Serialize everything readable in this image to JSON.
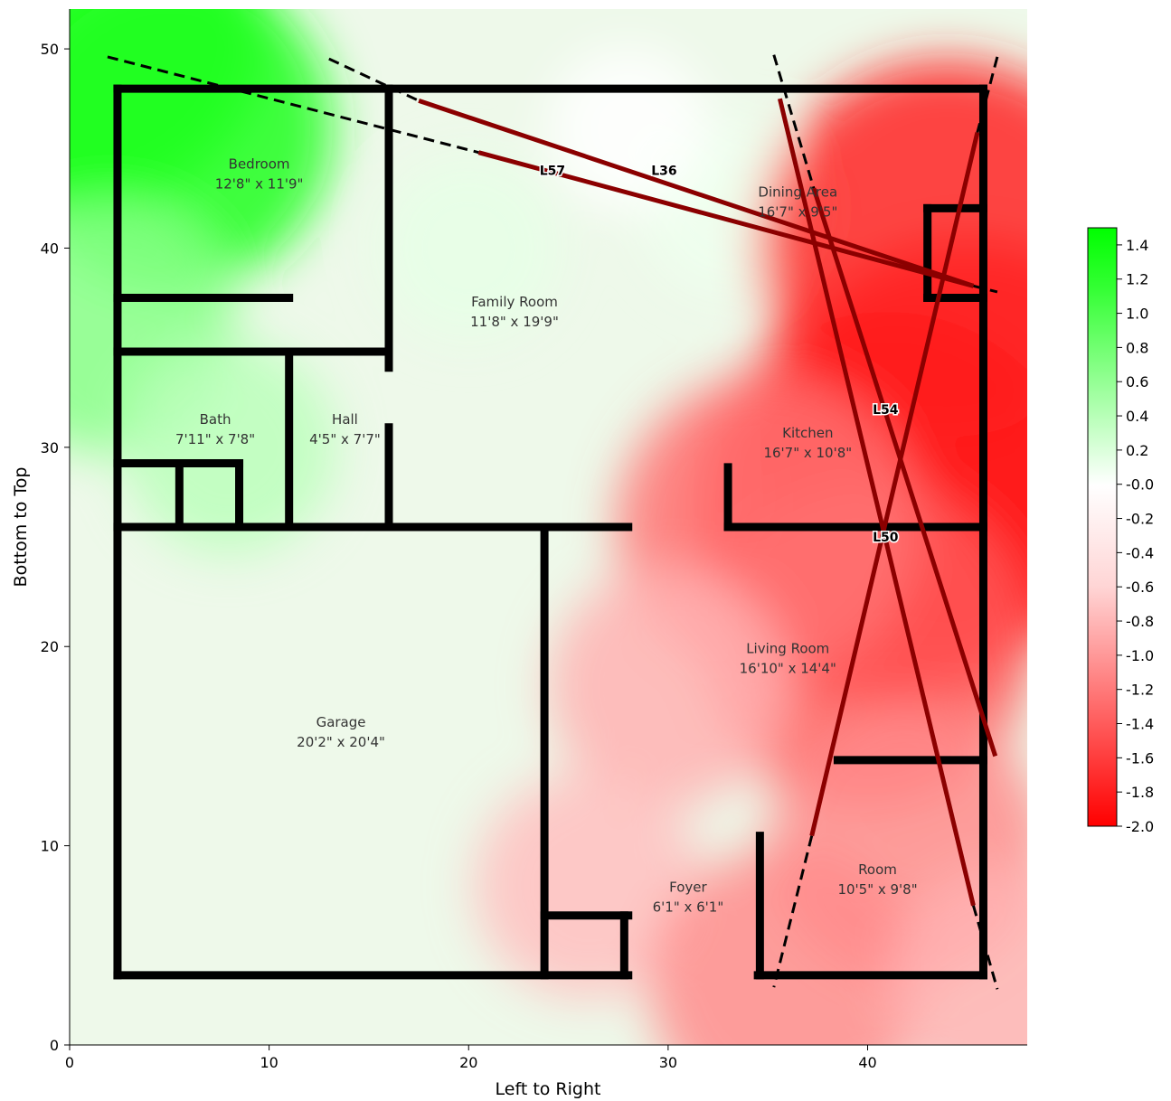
{
  "chart_data": {
    "type": "heatmap",
    "xlabel": "Left to Right",
    "ylabel": "Bottom to Top",
    "xlim": [
      0,
      48
    ],
    "ylim": [
      0,
      52
    ],
    "x_ticks": [
      "0",
      "10",
      "20",
      "30",
      "40"
    ],
    "x_tick_values": [
      0,
      10,
      20,
      30,
      40
    ],
    "y_ticks": [
      "0",
      "10",
      "20",
      "30",
      "40",
      "50"
    ],
    "y_tick_values": [
      0,
      10,
      20,
      30,
      40,
      50
    ],
    "colorbar": {
      "labels": [
        "1.4",
        "1.2",
        "1.0",
        "0.8",
        "0.6",
        "0.4",
        "0.2",
        "-0.0",
        "-0.2",
        "-0.4",
        "-0.6",
        "-0.8",
        "-1.0",
        "-1.2",
        "-1.4",
        "-1.6",
        "-1.8",
        "-2.0"
      ],
      "label_values": [
        1.4,
        1.2,
        1.0,
        0.8,
        0.6,
        0.4,
        0.2,
        0.0,
        -0.2,
        -0.4,
        -0.6,
        -0.8,
        -1.0,
        -1.2,
        -1.4,
        -1.6,
        -1.8,
        -2.0
      ],
      "min": -2.0,
      "max": 1.5,
      "colors": {
        "positive": "#00ff00",
        "neutral": "#ffffff",
        "negative": "#ff0000"
      }
    },
    "heat_centers": [
      {
        "x": 1,
        "y": 51,
        "value": 1.5
      },
      {
        "x": 5,
        "y": 46,
        "value": 1.3
      },
      {
        "x": 2,
        "y": 36,
        "value": 0.7
      },
      {
        "x": 8,
        "y": 30,
        "value": 0.4
      },
      {
        "x": 20,
        "y": 40,
        "value": 0.15
      },
      {
        "x": 33,
        "y": 42,
        "value": 0.1
      },
      {
        "x": 28,
        "y": 46,
        "value": 0.0
      },
      {
        "x": 45,
        "y": 30,
        "value": -2.0
      },
      {
        "x": 44,
        "y": 40,
        "value": -1.7
      },
      {
        "x": 41,
        "y": 27,
        "value": -1.8
      },
      {
        "x": 40,
        "y": 20,
        "value": -1.3
      },
      {
        "x": 35,
        "y": 26,
        "value": -1.1
      },
      {
        "x": 42,
        "y": 10,
        "value": -0.9
      },
      {
        "x": 30,
        "y": 18,
        "value": -0.6
      },
      {
        "x": 26,
        "y": 8,
        "value": -0.5
      },
      {
        "x": 36,
        "y": 3,
        "value": -0.9
      },
      {
        "x": 47,
        "y": 3,
        "value": -0.6
      }
    ],
    "walls": [
      [
        [
          2.4,
          48
        ],
        [
          45.8,
          48
        ]
      ],
      [
        [
          2.4,
          48
        ],
        [
          2.4,
          3.5
        ]
      ],
      [
        [
          45.8,
          48
        ],
        [
          45.8,
          3.5
        ]
      ],
      [
        [
          2.4,
          3.5
        ],
        [
          28,
          3.5
        ]
      ],
      [
        [
          34.5,
          3.5
        ],
        [
          45.8,
          3.5
        ]
      ],
      [
        [
          2.4,
          37.5
        ],
        [
          11,
          37.5
        ]
      ],
      [
        [
          2.4,
          34.8
        ],
        [
          16,
          34.8
        ]
      ],
      [
        [
          16,
          48
        ],
        [
          16,
          34
        ]
      ],
      [
        [
          2.4,
          29.2
        ],
        [
          8.5,
          29.2
        ]
      ],
      [
        [
          2.4,
          26
        ],
        [
          28,
          26
        ]
      ],
      [
        [
          16,
          31
        ],
        [
          16,
          26
        ]
      ],
      [
        [
          11,
          34.8
        ],
        [
          11,
          26
        ]
      ],
      [
        [
          5.5,
          29.2
        ],
        [
          5.5,
          26
        ]
      ],
      [
        [
          8.5,
          29.2
        ],
        [
          8.5,
          26
        ]
      ],
      [
        [
          23.8,
          26
        ],
        [
          23.8,
          3.5
        ]
      ],
      [
        [
          23.8,
          6.5
        ],
        [
          28,
          6.5
        ]
      ],
      [
        [
          27.8,
          6.5
        ],
        [
          27.8,
          3.5
        ]
      ],
      [
        [
          33,
          26
        ],
        [
          45.8,
          26
        ]
      ],
      [
        [
          33,
          29
        ],
        [
          33,
          26
        ]
      ],
      [
        [
          43,
          42
        ],
        [
          45.8,
          42
        ]
      ],
      [
        [
          43,
          42
        ],
        [
          43,
          37.5
        ]
      ],
      [
        [
          43,
          37.5
        ],
        [
          45.8,
          37.5
        ]
      ],
      [
        [
          34.6,
          10.5
        ],
        [
          34.6,
          3.5
        ]
      ],
      [
        [
          38.5,
          14.3
        ],
        [
          45.8,
          14.3
        ]
      ]
    ],
    "rooms": [
      {
        "name": "Bedroom",
        "dim": "12'8\" x 11'9\"",
        "x": 9.5,
        "y": 43.8
      },
      {
        "name": "Family Room",
        "dim": "11'8\" x 19'9\"",
        "x": 22.3,
        "y": 36.9
      },
      {
        "name": "Dining Area",
        "dim": "16'7\" x 9'5\"",
        "x": 36.5,
        "y": 42.4
      },
      {
        "name": "Kitchen",
        "dim": "16'7\" x 10'8\"",
        "x": 37,
        "y": 30.3
      },
      {
        "name": "Bath",
        "dim": "7'11\" x 7'8\"",
        "x": 7.3,
        "y": 31
      },
      {
        "name": "Hall",
        "dim": "4'5\" x 7'7\"",
        "x": 13.8,
        "y": 31
      },
      {
        "name": "Garage",
        "dim": "20'2\" x 20'4\"",
        "x": 13.6,
        "y": 15.8
      },
      {
        "name": "Living Room",
        "dim": "16'10\" x 14'4\"",
        "x": 36,
        "y": 19.5
      },
      {
        "name": "Foyer",
        "dim": "6'1\" x 6'1\"",
        "x": 31,
        "y": 7.5
      },
      {
        "name": "Room",
        "dim": "10'5\" x 9'8\"",
        "x": 40.5,
        "y": 8.4
      }
    ],
    "measurement_lines": [
      {
        "label": "L57",
        "from": [
          20.5,
          44.8
        ],
        "to": [
          45.3,
          38.1
        ],
        "label_at": [
          24.2,
          43.9
        ]
      },
      {
        "label": "L36",
        "from": [
          17.5,
          47.4
        ],
        "to": [
          45.3,
          38.1
        ],
        "label_at": [
          29.8,
          43.9
        ]
      },
      {
        "label": "L54",
        "from": [
          37.3,
          43
        ],
        "to": [
          46.4,
          14.5
        ],
        "label_at": [
          40.9,
          31.9
        ]
      },
      {
        "label": "L50",
        "from": [
          45.5,
          45.8
        ],
        "to": [
          37.2,
          10.5
        ],
        "label_at": [
          40.9,
          25.5
        ]
      },
      {
        "label": "",
        "from": [
          35.6,
          47.5
        ],
        "to": [
          45.3,
          7.0
        ],
        "label_at": null
      }
    ],
    "boundary_lines": [
      [
        [
          1.9,
          49.6
        ],
        [
          20.5,
          44.8
        ]
      ],
      [
        [
          13,
          49.5
        ],
        [
          17.5,
          47.4
        ]
      ],
      [
        [
          45.3,
          38.1
        ],
        [
          46.5,
          37.8
        ]
      ],
      [
        [
          35.3,
          49.7
        ],
        [
          37.3,
          43
        ]
      ],
      [
        [
          46.5,
          49.6
        ],
        [
          45.5,
          45.8
        ]
      ],
      [
        [
          37.2,
          10.5
        ],
        [
          35.3,
          2.9
        ]
      ],
      [
        [
          45.3,
          7.0
        ],
        [
          46.5,
          2.8
        ]
      ]
    ]
  }
}
